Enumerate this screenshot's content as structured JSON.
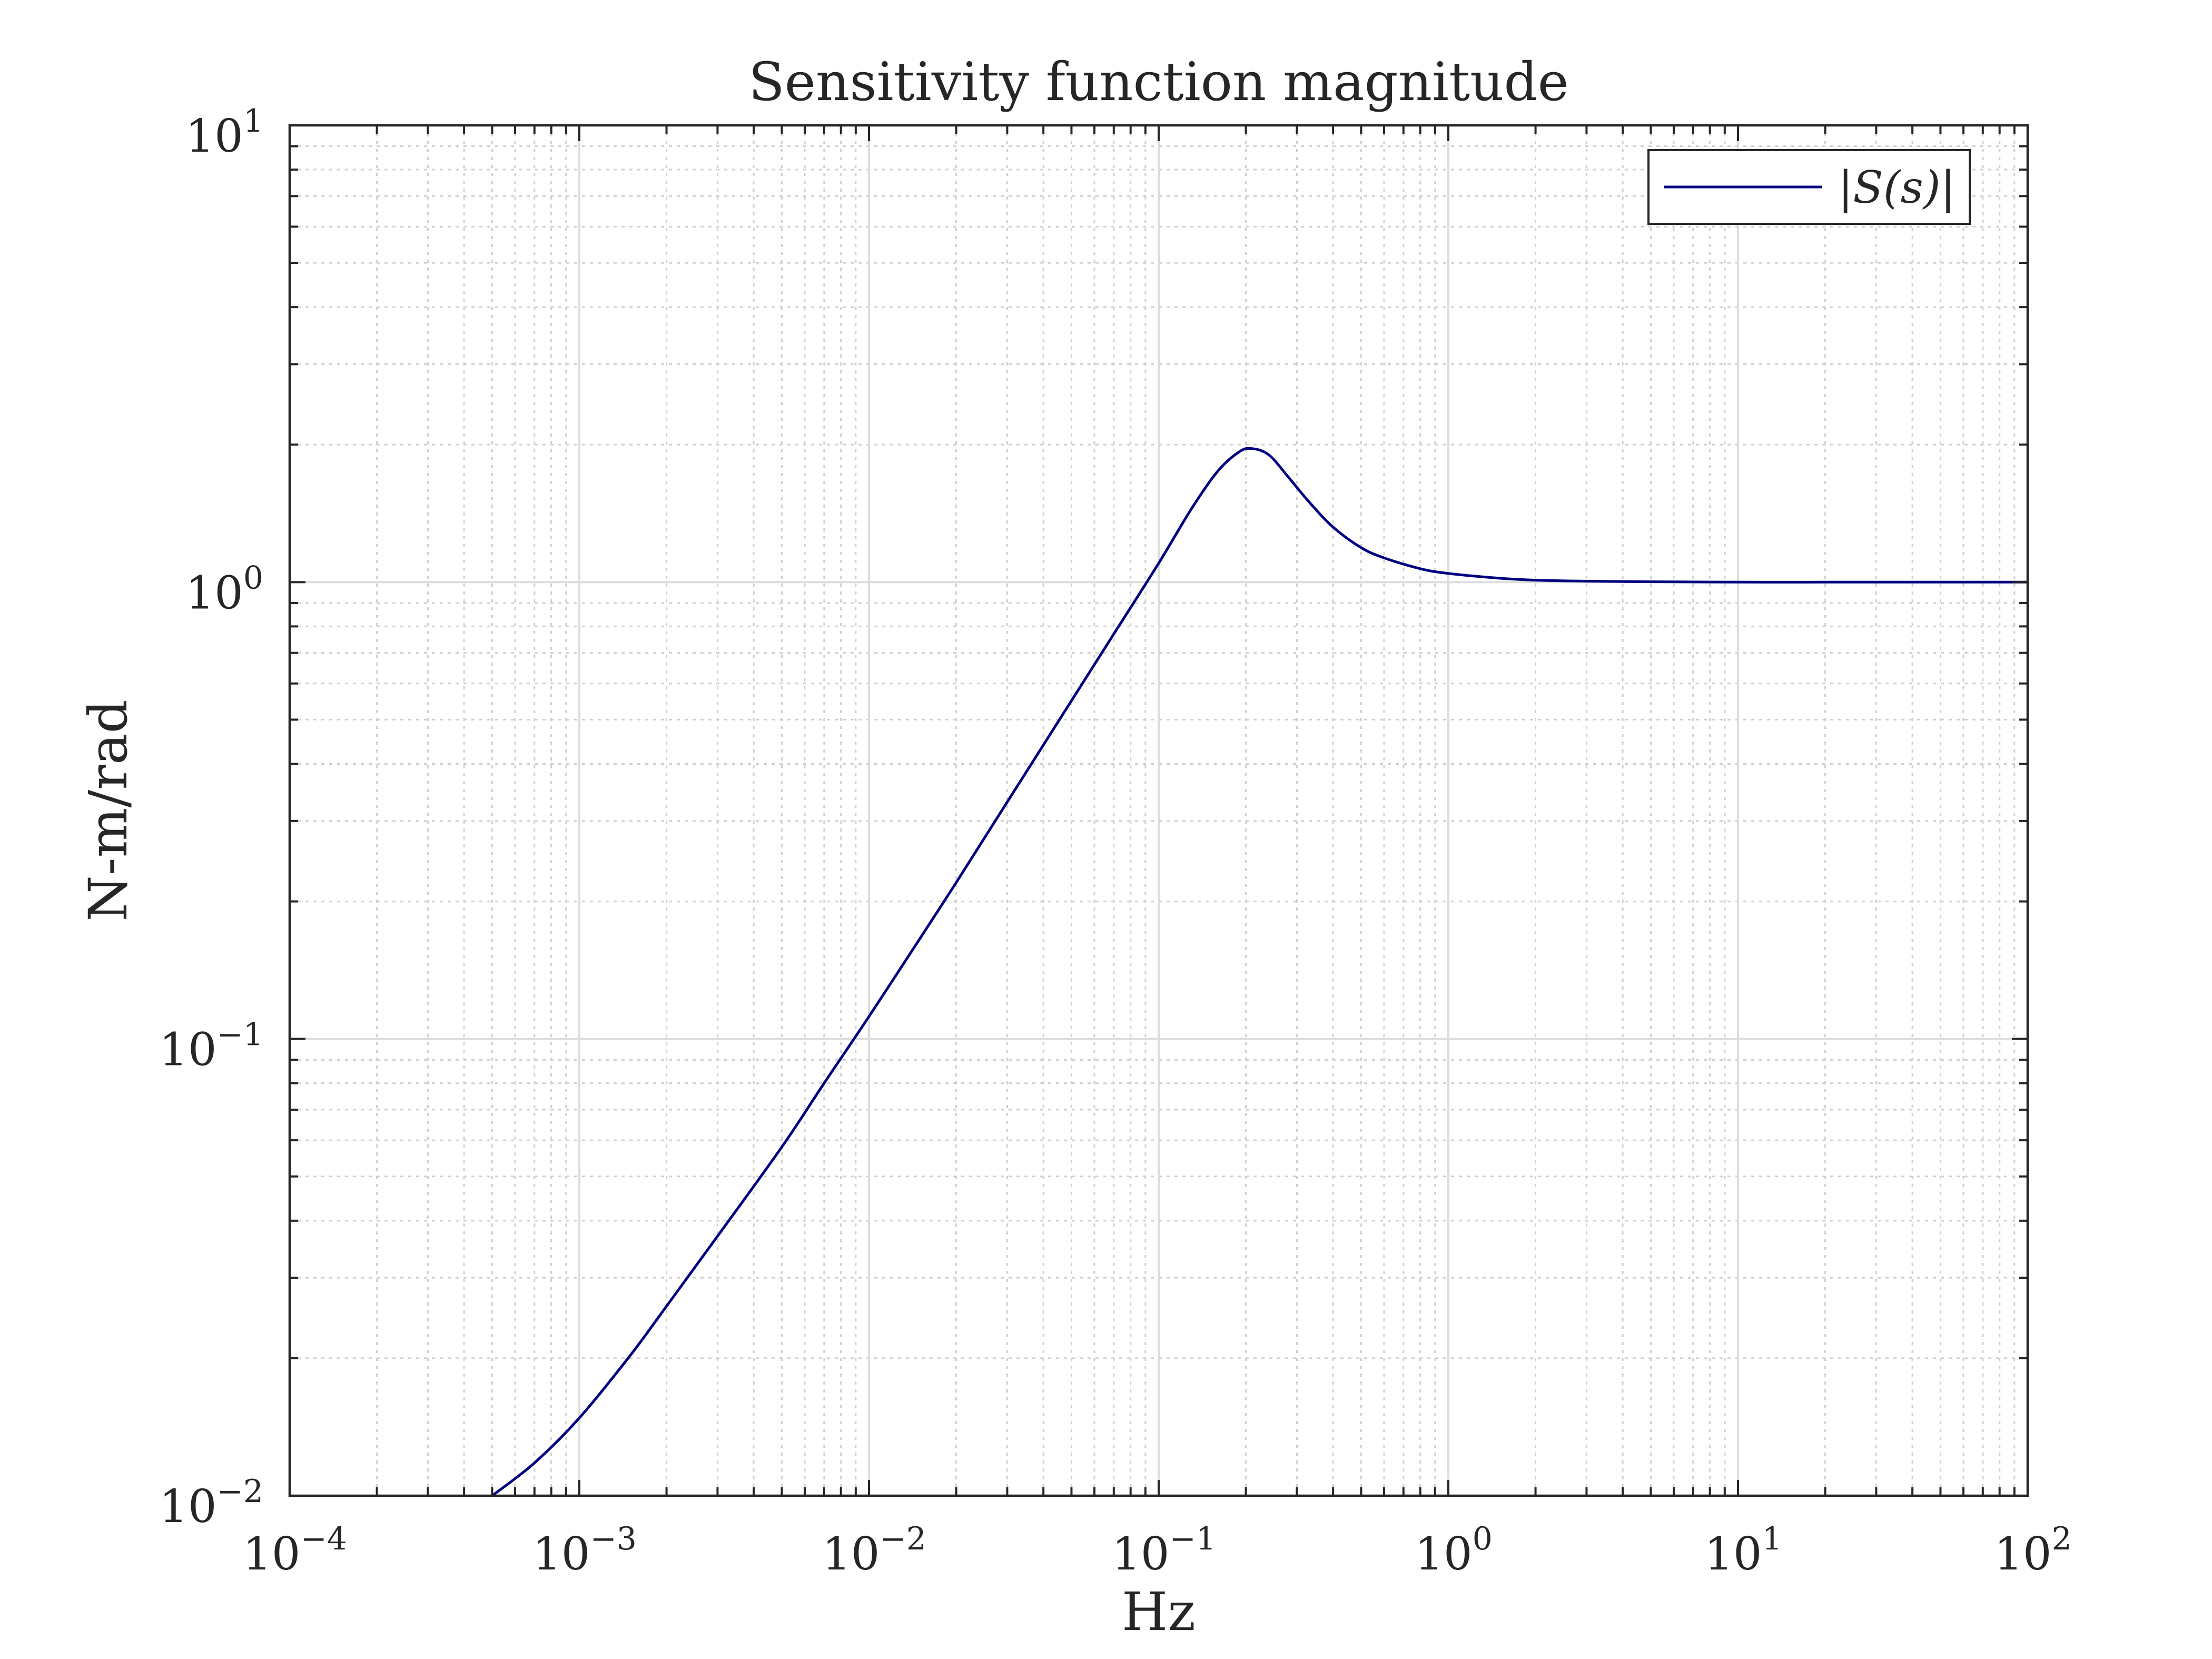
{
  "chart_data": {
    "type": "line",
    "title": "Sensitivity function magnitude",
    "xlabel": "Hz",
    "ylabel": "N-m/rad",
    "xscale": "log",
    "yscale": "log",
    "xlim": [
      0.0001,
      100
    ],
    "ylim": [
      0.01,
      10
    ],
    "grid": true,
    "minor_grid": true,
    "legend_position": "top-right",
    "x_ticks": [
      {
        "base": "10",
        "exp": "−4",
        "value": 0.0001
      },
      {
        "base": "10",
        "exp": "−3",
        "value": 0.001
      },
      {
        "base": "10",
        "exp": "−2",
        "value": 0.01
      },
      {
        "base": "10",
        "exp": "−1",
        "value": 0.1
      },
      {
        "base": "10",
        "exp": "0",
        "value": 1
      },
      {
        "base": "10",
        "exp": "1",
        "value": 10
      },
      {
        "base": "10",
        "exp": "2",
        "value": 100
      }
    ],
    "y_ticks": [
      {
        "base": "10",
        "exp": "−2",
        "value": 0.01
      },
      {
        "base": "10",
        "exp": "−1",
        "value": 0.1
      },
      {
        "base": "10",
        "exp": "0",
        "value": 1
      },
      {
        "base": "10",
        "exp": "1",
        "value": 10
      }
    ],
    "series": [
      {
        "name": "|S(s)|",
        "color": "#000080",
        "x": [
          0.0005,
          0.0007,
          0.001,
          0.0015,
          0.002,
          0.003,
          0.005,
          0.007,
          0.01,
          0.015,
          0.02,
          0.03,
          0.05,
          0.07,
          0.1,
          0.13,
          0.16,
          0.19,
          0.21,
          0.24,
          0.28,
          0.33,
          0.4,
          0.5,
          0.6,
          0.8,
          1,
          1.5,
          2,
          3,
          5,
          10,
          20,
          50,
          100
        ],
        "y": [
          0.01,
          0.0118,
          0.0148,
          0.0203,
          0.026,
          0.037,
          0.058,
          0.08,
          0.112,
          0.166,
          0.22,
          0.33,
          0.55,
          0.77,
          1.1,
          1.45,
          1.75,
          1.93,
          1.96,
          1.9,
          1.7,
          1.5,
          1.32,
          1.19,
          1.13,
          1.07,
          1.045,
          1.02,
          1.01,
          1.005,
          1.002,
          1.0,
          1.0,
          1.0,
          1.0
        ]
      }
    ]
  }
}
